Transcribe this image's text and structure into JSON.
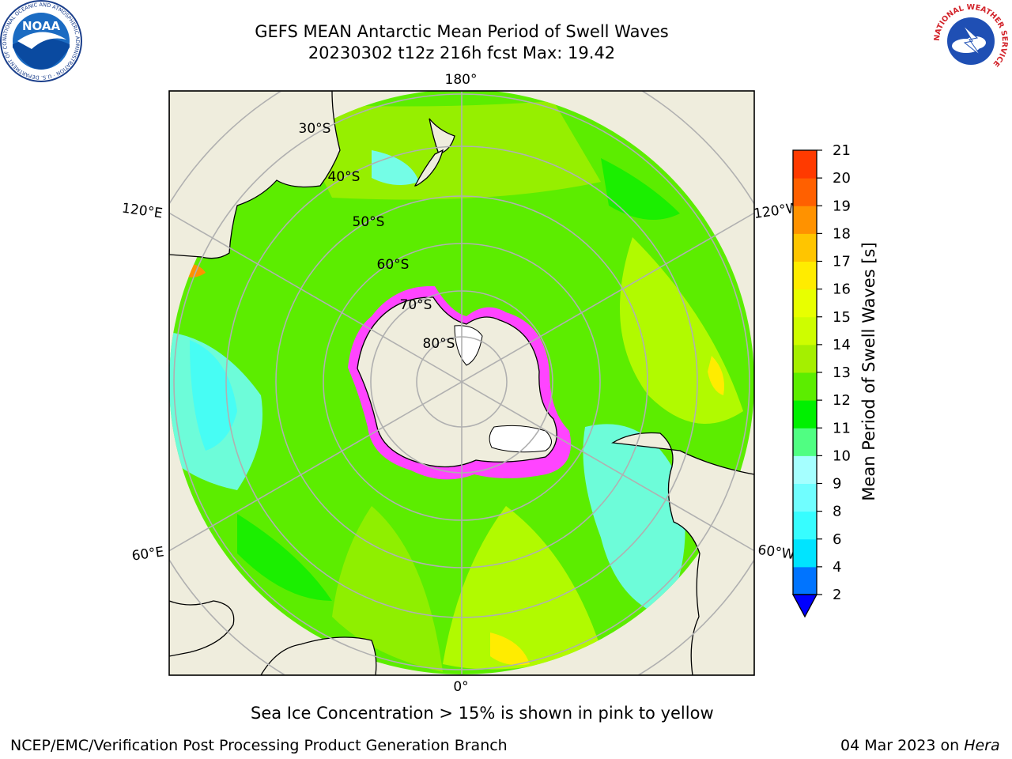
{
  "title_line1": "GEFS MEAN Antarctic Mean Period of Swell Waves",
  "title_line2": "20230302 t12z 216h fcst   Max: 19.42",
  "colorbar": {
    "label": "Mean Period of Swell Waves [s]",
    "ticks": [
      "2",
      "4",
      "6",
      "8",
      "9",
      "10",
      "11",
      "12",
      "13",
      "14",
      "15",
      "16",
      "17",
      "18",
      "19",
      "20",
      "21"
    ],
    "colors": [
      "#0000ff",
      "#0074ff",
      "#00e4ff",
      "#37fdff",
      "#70feff",
      "#a5ffff",
      "#50fe82",
      "#00f000",
      "#5ced00",
      "#a5ef00",
      "#cefd00",
      "#e8ff00",
      "#ffec00",
      "#ffc500",
      "#ff9200",
      "#ff6000",
      "#ff3a00",
      "#ff0000"
    ]
  },
  "map": {
    "lon_labels": {
      "top": "180°",
      "bottom": "0°",
      "left_upper": "120°E",
      "left_lower": "60°E",
      "right_upper": "120°W",
      "right_lower": "60°W"
    },
    "lat_labels": [
      "30°S",
      "40°S",
      "50°S",
      "60°S",
      "70°S",
      "80°S"
    ],
    "ocean_color": "#5ced00",
    "land_color": "#efeddd",
    "ice_color": "#ff44ff"
  },
  "note": "Sea Ice Concentration > 15% is shown in pink to yellow",
  "footer_left": "NCEP/EMC/Verification Post Processing Product Generation Branch",
  "footer_right_date": "04 Mar 2023 on ",
  "footer_right_host": "Hera",
  "logos": {
    "noaa_text": "NOAA",
    "noaa_ring": "NATIONAL OCEANIC AND ATMOSPHERIC ADMINISTRATION · U.S. DEPARTMENT OF COMMERCE",
    "nws_ring": "NATIONAL WEATHER SERVICE"
  }
}
